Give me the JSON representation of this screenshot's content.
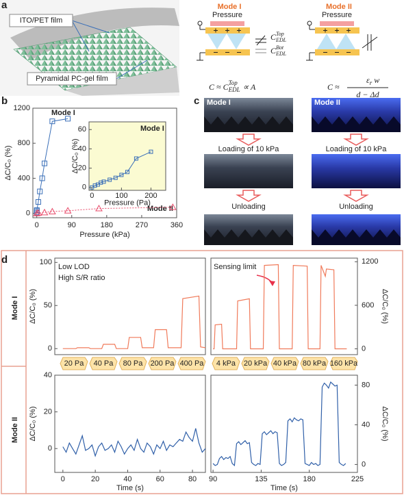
{
  "panel_labels": [
    "a",
    "b",
    "c",
    "d"
  ],
  "panel_a": {
    "film_top": "ITO/PET film",
    "film_bottom": "Pyramidal PC-gel film",
    "modes": [
      {
        "title": "Mode I",
        "pressure": "Pressure",
        "cap_top": {
          "base": "C",
          "sub": "EDL",
          "sup": "Top"
        },
        "cap_bot": {
          "base": "C",
          "sub": "EDL",
          "sup": "Bot"
        },
        "equation": {
          "lhs": "C ≈ C",
          "sub": "EDL",
          "sup": "Top",
          "tail": "∝ A"
        }
      },
      {
        "title": "Mode II",
        "pressure": "Pressure",
        "equation": {
          "lhs": "C ≈",
          "num_base": "ε",
          "num_sub": "r",
          "num_tail": "w",
          "denominator": "d − Δd"
        }
      }
    ]
  },
  "panel_c": {
    "columns": [
      "Mode I",
      "Mode II"
    ],
    "loading": [
      "Loading of 10 kPa",
      "Loading of 10 kPa"
    ],
    "unloading": [
      "Unloading",
      "Unloading"
    ]
  },
  "panel_d": {
    "rows": [
      "Mode I",
      "Mode II"
    ],
    "pressure_labels": [
      "20 Pa",
      "40 Pa",
      "80 Pa",
      "200 Pa",
      "400 Pa",
      "4 kPa",
      "20 kPa",
      "40 kPa",
      "80 kPa",
      "160 kPa"
    ]
  },
  "chart_data": [
    {
      "type": "line",
      "xlabel": "Pressure (kPa)",
      "ylabel": "ΔC/C₀ (%)",
      "xlim": [
        -10,
        360
      ],
      "ylim": [
        -50,
        1200
      ],
      "xticks": [
        0,
        90,
        180,
        270,
        360
      ],
      "yticks": [
        0,
        400,
        800,
        1200
      ],
      "annotations": [
        "Mode I",
        "Mode II"
      ],
      "series": [
        {
          "name": "Mode I",
          "color": "#3a6fb8",
          "marker": "square",
          "x": [
            0,
            0.1,
            0.15,
            0.2,
            4,
            8,
            14,
            20,
            40,
            80
          ],
          "values": [
            0,
            13,
            30,
            37,
            130,
            250,
            400,
            570,
            1050,
            1080
          ]
        },
        {
          "name": "Mode II",
          "color": "#e84a6a",
          "marker": "triangle",
          "x": [
            0,
            4,
            20,
            40,
            80,
            160,
            350
          ],
          "values": [
            0,
            5,
            10,
            20,
            30,
            55,
            70
          ]
        }
      ]
    },
    {
      "type": "line",
      "xlabel": "Pressure (Pa)",
      "ylabel": "ΔC/C₀ (%)",
      "xlim": [
        -10,
        250
      ],
      "ylim": [
        -3,
        68
      ],
      "xticks": [
        0,
        100,
        200
      ],
      "yticks": [
        0,
        20,
        40,
        60
      ],
      "background": "#fbfbd2",
      "annotations": [
        "Mode I"
      ],
      "series": [
        {
          "name": "Mode I",
          "color": "#3a6fb8",
          "marker": "square",
          "x": [
            0,
            10,
            20,
            30,
            40,
            60,
            80,
            100,
            120,
            150,
            200
          ],
          "values": [
            0,
            2,
            3,
            5,
            6,
            8,
            10,
            13,
            16,
            30,
            37
          ]
        }
      ]
    },
    {
      "type": "line",
      "ylabel": "ΔC/C₀ (%)",
      "xlim": [
        -5,
        88
      ],
      "ylim": [
        -7,
        105
      ],
      "yticks": [
        0,
        50,
        100
      ],
      "annotations": [
        "Low LOD",
        "High S/R ratio"
      ],
      "series": [
        {
          "color": "#f07a5a",
          "x": [
            0,
            8,
            9,
            16,
            17,
            24,
            25,
            32,
            33,
            40,
            41,
            48,
            49,
            56,
            57,
            64,
            65,
            73,
            74,
            84,
            85,
            88
          ],
          "values": [
            0,
            0,
            1,
            1,
            0,
            0,
            5,
            5,
            0,
            0,
            13,
            13,
            1,
            1,
            22,
            22,
            1,
            1,
            58,
            61,
            2,
            1
          ]
        }
      ]
    },
    {
      "type": "line",
      "ylabel": "ΔC/C₀ (%)",
      "y_side": "right",
      "xlim": [
        88,
        225
      ],
      "ylim": [
        -80,
        1250
      ],
      "yticks": [
        0,
        600,
        1200
      ],
      "annotations": [
        "Sensing limit"
      ],
      "series": [
        {
          "color": "#f07a5a",
          "x": [
            90,
            91,
            92,
            98,
            99,
            112,
            113,
            124,
            125,
            137,
            138,
            151,
            152,
            164,
            165,
            178,
            179,
            190,
            191,
            195,
            196,
            203,
            204,
            215
          ],
          "values": [
            0,
            0,
            330,
            340,
            0,
            0,
            660,
            690,
            0,
            0,
            1150,
            1160,
            0,
            0,
            1150,
            1140,
            0,
            0,
            1150,
            1000,
            1100,
            1090,
            0,
            0
          ]
        }
      ]
    },
    {
      "type": "line",
      "xlabel": "Time (s)",
      "ylabel": "ΔC/C₀ (%)",
      "xlim": [
        -5,
        88
      ],
      "ylim": [
        -13,
        40
      ],
      "xticks": [
        0,
        20,
        40,
        60,
        80
      ],
      "yticks": [
        0,
        20,
        40
      ],
      "series": [
        {
          "color": "#2f5fa8",
          "x": [
            0,
            2,
            4,
            6,
            8,
            10,
            12,
            14,
            16,
            18,
            20,
            22,
            24,
            26,
            28,
            30,
            32,
            34,
            36,
            38,
            40,
            42,
            44,
            46,
            48,
            50,
            52,
            54,
            56,
            58,
            60,
            62,
            64,
            66,
            68,
            70,
            72,
            74,
            76,
            78,
            80,
            82,
            84,
            86,
            88
          ],
          "values": [
            1,
            -2,
            3,
            0,
            -3,
            2,
            7,
            -1,
            0,
            2,
            -4,
            1,
            3,
            -1,
            0,
            2,
            -2,
            4,
            1,
            -3,
            0,
            2,
            -1,
            5,
            0,
            -2,
            3,
            1,
            -3,
            2,
            0,
            4,
            -1,
            2,
            1,
            3,
            5,
            4,
            9,
            6,
            4,
            11,
            3,
            -2,
            0
          ]
        }
      ]
    },
    {
      "type": "line",
      "xlabel": "Time (s)",
      "ylabel": "ΔC/C₀ (%)",
      "y_side": "right",
      "xlim": [
        88,
        225
      ],
      "ylim": [
        -8,
        90
      ],
      "xticks": [
        90,
        135,
        180,
        225
      ],
      "yticks": [
        0,
        40,
        80
      ],
      "series": [
        {
          "color": "#2f5fa8",
          "x": [
            90,
            92,
            94,
            96,
            98,
            100,
            102,
            104,
            106,
            108,
            110,
            112,
            114,
            116,
            118,
            120,
            122,
            124,
            126,
            128,
            130,
            132,
            134,
            136,
            138,
            140,
            142,
            144,
            146,
            148,
            150,
            152,
            154,
            156,
            158,
            160,
            162,
            164,
            166,
            168,
            170,
            172,
            174,
            176,
            178,
            180,
            182,
            184,
            186,
            188,
            190,
            192,
            194,
            196,
            198,
            200,
            202,
            204,
            206,
            208,
            210,
            212,
            214
          ],
          "values": [
            1,
            -1,
            0,
            6,
            8,
            5,
            7,
            6,
            8,
            1,
            -1,
            21,
            23,
            20,
            22,
            24,
            21,
            22,
            2,
            0,
            -1,
            1,
            0,
            31,
            33,
            30,
            32,
            34,
            31,
            33,
            32,
            1,
            -1,
            0,
            2,
            44,
            46,
            43,
            47,
            45,
            44,
            46,
            45,
            1,
            0,
            -1,
            2,
            0,
            1,
            -1,
            0,
            78,
            82,
            80,
            77,
            83,
            81,
            79,
            80,
            2,
            0,
            -1,
            1
          ]
        }
      ]
    }
  ]
}
